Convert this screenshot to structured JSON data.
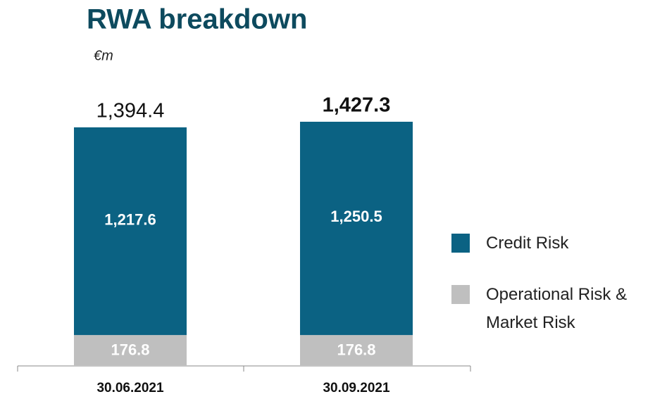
{
  "chart_data": {
    "type": "stacked-bar",
    "title": "RWA breakdown",
    "subtitle": "€m",
    "categories": [
      "30.06.2021",
      "30.09.2021"
    ],
    "series": [
      {
        "name": "Operational Risk & Market Risk",
        "color": "#bfbfbf",
        "values": [
          176.8,
          176.8
        ]
      },
      {
        "name": "Credit Risk",
        "color": "#0b6283",
        "values": [
          1217.6,
          1250.5
        ],
        "value_labels": [
          "1,217.6",
          "1,250.5"
        ]
      }
    ],
    "totals": [
      1394.4,
      1427.3
    ],
    "total_labels": [
      "1,394.4",
      "1,427.3"
    ]
  }
}
